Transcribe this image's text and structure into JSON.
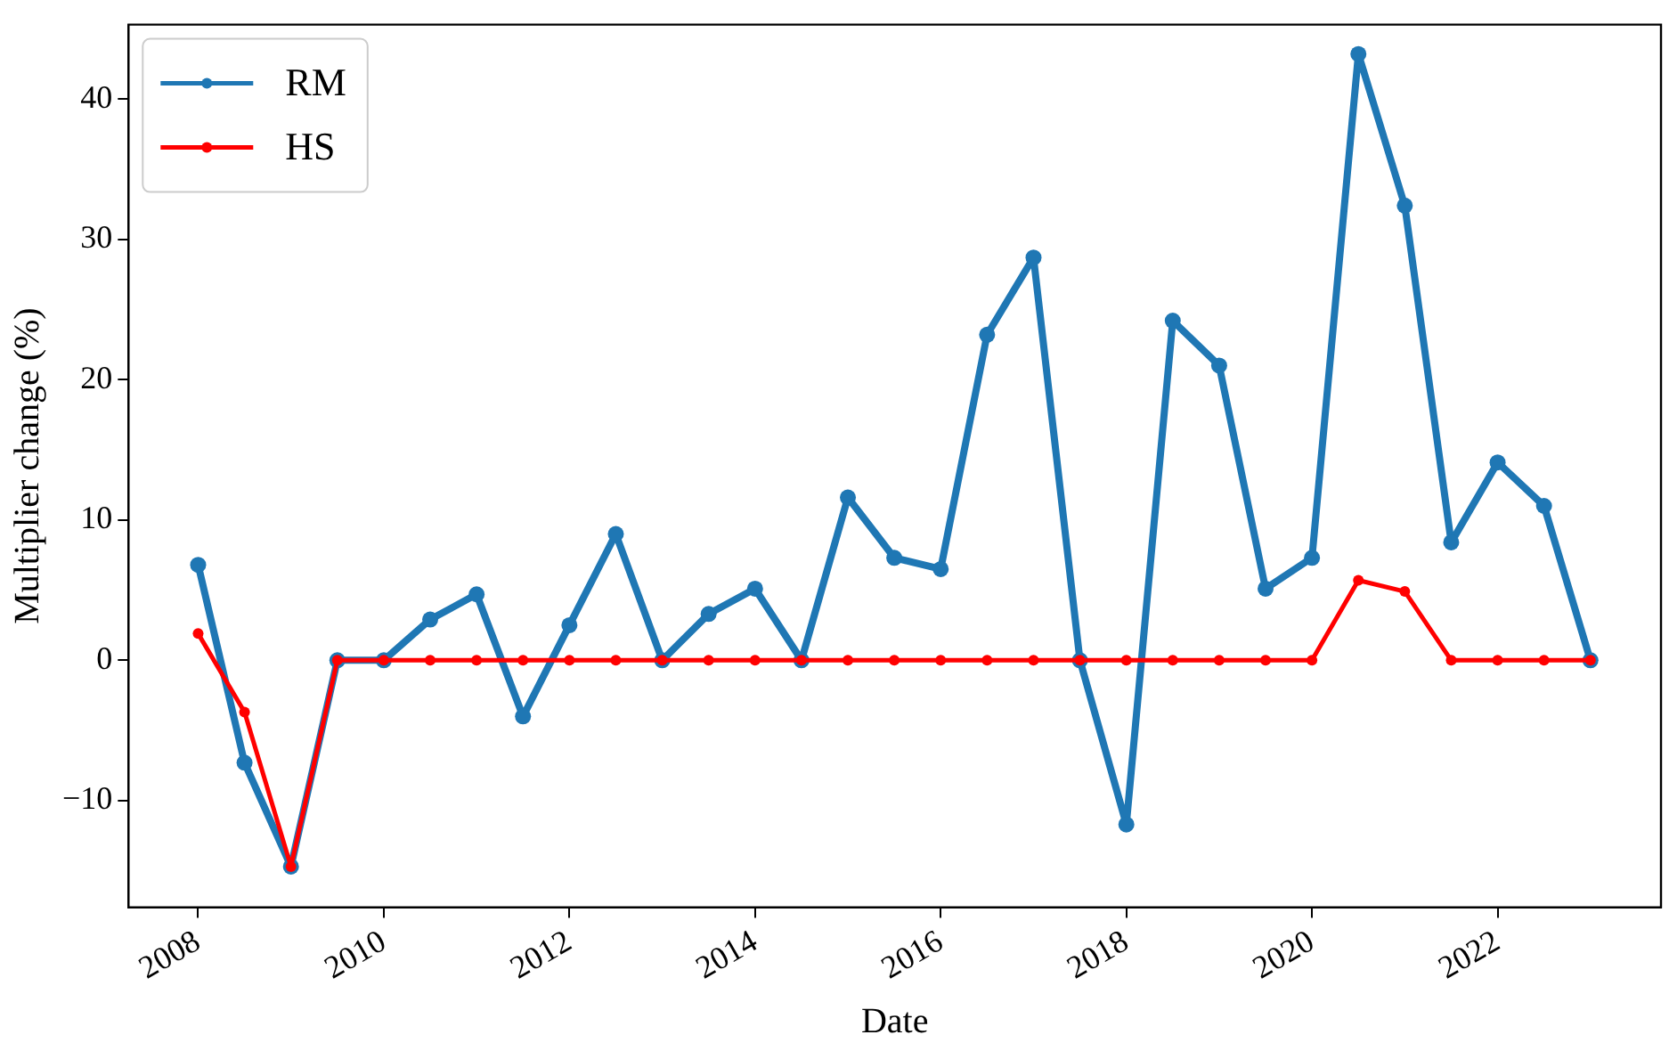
{
  "chart_data": {
    "type": "line",
    "xlabel": "Date",
    "ylabel": "Multiplier change (%)",
    "x": [
      2008,
      2008.5,
      2009,
      2009.5,
      2010,
      2010.5,
      2011,
      2011.5,
      2012,
      2012.5,
      2013,
      2013.5,
      2014,
      2014.5,
      2015,
      2015.5,
      2016,
      2016.5,
      2017,
      2017.5,
      2018,
      2018.5,
      2019,
      2019.5,
      2020,
      2020.5,
      2021,
      2021.5,
      2022,
      2022.5,
      2023
    ],
    "series": [
      {
        "name": "RM",
        "color": "#1f77b4",
        "values": [
          6.8,
          -7.3,
          -14.7,
          0,
          0,
          2.9,
          4.7,
          -4,
          2.5,
          9,
          0,
          3.3,
          5.1,
          0,
          11.6,
          7.3,
          6.5,
          23.2,
          28.7,
          0,
          -11.7,
          24.2,
          21,
          5.1,
          7.3,
          43.2,
          32.4,
          8.4,
          14.1,
          11,
          0
        ]
      },
      {
        "name": "HS",
        "color": "#ff0000",
        "values": [
          1.9,
          -3.7,
          -14.7,
          0,
          0,
          0,
          0,
          0,
          0,
          0,
          0,
          0,
          0,
          0,
          0,
          0,
          0,
          0,
          0,
          0,
          0,
          0,
          0,
          0,
          0,
          5.7,
          4.9,
          0,
          0,
          0,
          0
        ]
      }
    ],
    "xlim": [
      2007.25,
      2023.76
    ],
    "xticks": [
      2008,
      2010,
      2012,
      2014,
      2016,
      2018,
      2020,
      2022
    ],
    "ylim": [
      -17.6,
      45.3
    ],
    "yticks": [
      {
        "value": -10,
        "label": "−10"
      },
      0,
      10,
      20,
      30,
      40
    ],
    "legend": "top left",
    "marker": "circle",
    "line_style": "solid",
    "grid": false
  }
}
